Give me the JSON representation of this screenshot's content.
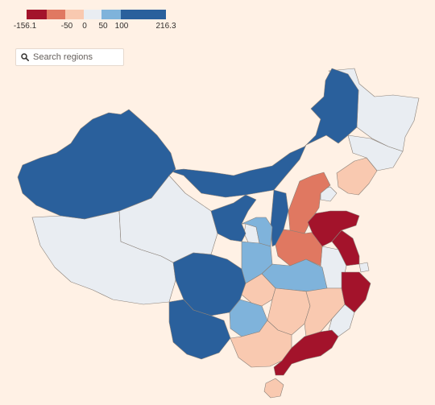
{
  "legend": {
    "colors": [
      "#a3132b",
      "#e07861",
      "#f9c9b0",
      "#e9edf2",
      "#7fb3db",
      "#2a609c"
    ],
    "ticks": [
      "-156.1",
      "-50",
      "0",
      "50",
      "100",
      "216.3"
    ]
  },
  "search": {
    "placeholder": "Search regions",
    "icon": "search-icon"
  },
  "map": {
    "land_color": "#e9edf2",
    "border_color": "#8a8078",
    "background": "#fff1e5"
  }
}
